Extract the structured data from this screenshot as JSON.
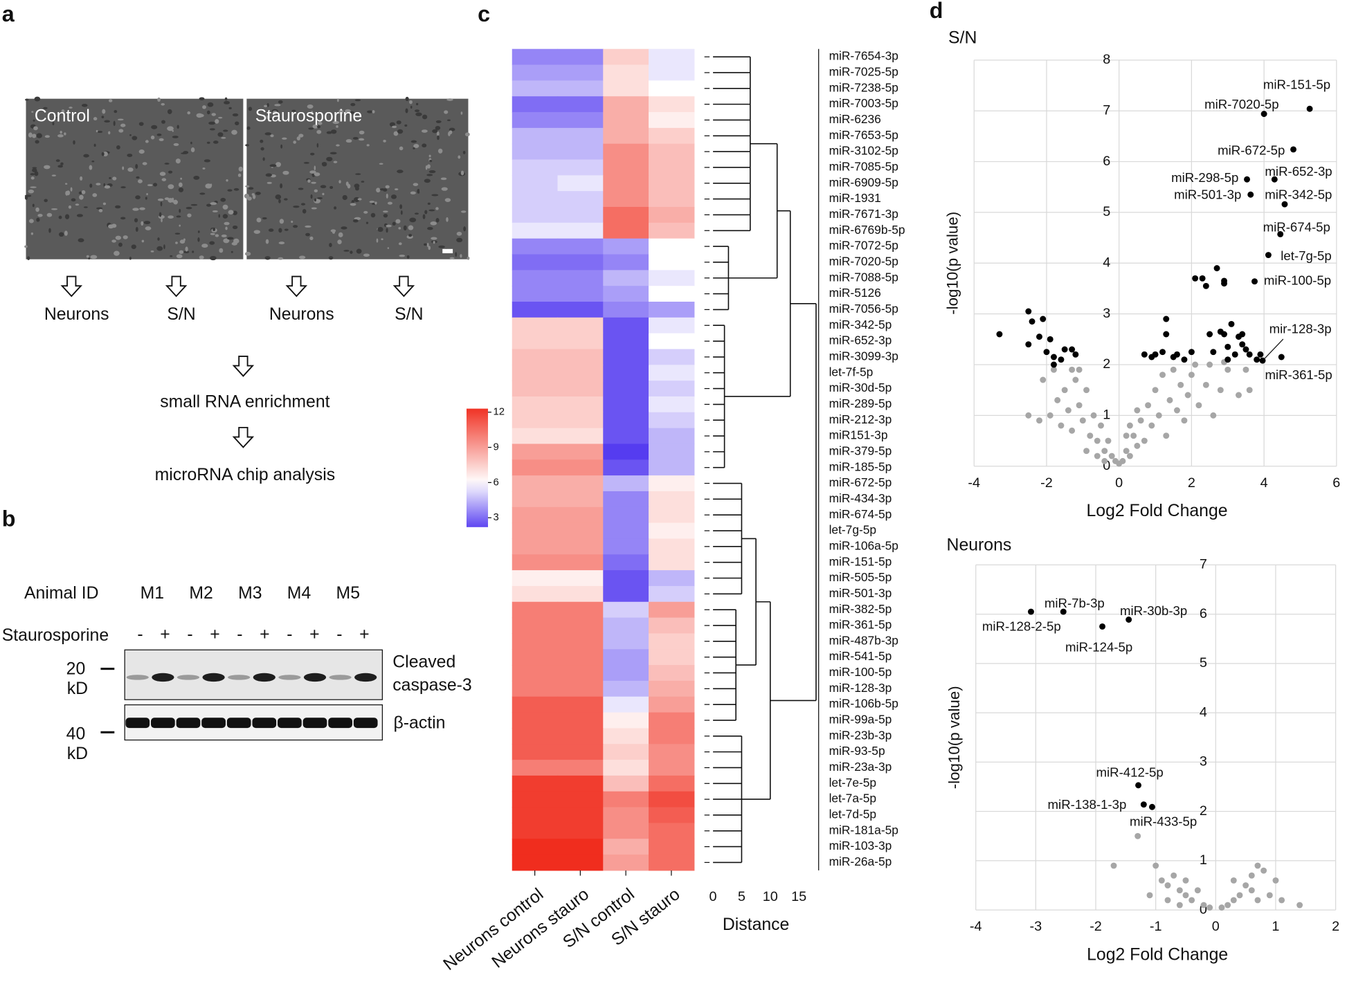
{
  "panel_labels": [
    "a",
    "b",
    "c",
    "d"
  ],
  "panel_a": {
    "images": [
      "Control",
      "Staurosporine"
    ],
    "fractions": [
      "Neurons",
      "S/N",
      "Neurons",
      "S/N"
    ],
    "steps": [
      "small RNA enrichment",
      "microRNA chip analysis"
    ]
  },
  "panel_b": {
    "row_label": "Animal ID",
    "animals": [
      "M1",
      "M2",
      "M3",
      "M4",
      "M5"
    ],
    "treatment": "Staurosporine",
    "signs": [
      "-",
      "+",
      "-",
      "+",
      "-",
      "+",
      "-",
      "+",
      "-",
      "+"
    ],
    "markers": [
      [
        "20",
        "kD"
      ],
      [
        "40",
        "kD"
      ]
    ],
    "blots": [
      [
        "Cleaved",
        "caspase-3"
      ],
      [
        "β-actin"
      ]
    ]
  },
  "chart_data": [
    {
      "type": "heatmap",
      "columns": [
        "Neurons control",
        "Neurons stauro",
        "S/N control",
        "S/N stauro"
      ],
      "rows": [
        "miR-7654-3p",
        "miR-7025-5p",
        "miR-7238-5p",
        "miR-7003-5p",
        "miR-6236",
        "miR-7653-5p",
        "miR-3102-5p",
        "miR-7085-5p",
        "miR-6909-5p",
        "miR-1931",
        "miR-7671-3p",
        "miR-6769b-5p",
        "miR-7072-5p",
        "miR-7020-5p",
        "miR-7088-5p",
        "miR-5126",
        "miR-7056-5p",
        "miR-342-5p",
        "miR-652-3p",
        "miR-3099-3p",
        "let-7f-5p",
        "miR-30d-5p",
        "miR-289-5p",
        "miR-212-3p",
        "miR151-3p",
        "miR-379-5p",
        "miR-185-5p",
        "miR-672-5p",
        "miR-434-3p",
        "miR-674-5p",
        "let-7g-5p",
        "miR-106a-5p",
        "miR-151-5p",
        "miR-505-5p",
        "miR-501-3p",
        "miR-382-5p",
        "miR-361-5p",
        "miR-487b-3p",
        "miR-541-5p",
        "miR-100-5p",
        "miR-128-3p",
        "miR-106b-5p",
        "miR-99a-5p",
        "miR-23b-3p",
        "miR-93-5p",
        "miR-23a-3p",
        "let-7e-5p",
        "let-7a-5p",
        "let-7d-5p",
        "miR-181a-5p",
        "miR-103-3p",
        "miR-26a-5p"
      ],
      "values": [
        [
          3.5,
          3.5,
          7.5,
          5.5
        ],
        [
          4,
          4,
          7,
          5.5
        ],
        [
          4.5,
          4.5,
          7,
          6
        ],
        [
          3,
          3,
          8.5,
          7
        ],
        [
          3.5,
          3.5,
          8.5,
          6.5
        ],
        [
          4.5,
          4.5,
          8.5,
          7.5
        ],
        [
          4.5,
          4.5,
          9.5,
          8
        ],
        [
          5,
          5,
          9.5,
          8
        ],
        [
          5,
          5.5,
          9.5,
          8
        ],
        [
          5,
          5,
          9.5,
          8
        ],
        [
          5,
          5,
          10.5,
          8.5
        ],
        [
          5.5,
          5.5,
          10.5,
          8
        ],
        [
          3.5,
          3.5,
          4,
          6
        ],
        [
          3,
          3,
          3.5,
          6
        ],
        [
          3.5,
          3.5,
          4.5,
          5.5
        ],
        [
          3.5,
          3.5,
          4,
          6
        ],
        [
          2.5,
          2.5,
          3.5,
          4
        ],
        [
          7.5,
          7.5,
          2.5,
          5.5
        ],
        [
          7.5,
          7.5,
          2.5,
          6
        ],
        [
          8,
          8,
          2.5,
          5
        ],
        [
          8,
          8,
          2.5,
          5.5
        ],
        [
          8,
          8,
          2.5,
          5
        ],
        [
          7.5,
          7.5,
          2.5,
          5.5
        ],
        [
          7.5,
          7.5,
          2.5,
          5
        ],
        [
          7,
          7,
          2.5,
          4.5
        ],
        [
          9,
          9,
          2,
          4.5
        ],
        [
          9.5,
          9.5,
          2.5,
          4.5
        ],
        [
          8.5,
          8.5,
          4.5,
          6.5
        ],
        [
          8.5,
          8.5,
          3.5,
          7
        ],
        [
          9,
          9,
          3.5,
          7
        ],
        [
          9,
          9,
          3.5,
          6.5
        ],
        [
          9,
          9,
          3.5,
          7
        ],
        [
          9.5,
          9.5,
          3,
          7
        ],
        [
          6.5,
          6.5,
          2.5,
          4.5
        ],
        [
          7,
          7,
          2.5,
          5
        ],
        [
          10,
          10,
          5,
          9
        ],
        [
          10,
          10,
          4.5,
          8
        ],
        [
          10,
          10,
          4.5,
          7.5
        ],
        [
          10,
          10,
          4,
          7.5
        ],
        [
          10,
          10,
          4,
          8
        ],
        [
          10,
          10,
          4.5,
          8.5
        ],
        [
          11,
          11,
          5.5,
          9
        ],
        [
          11,
          11,
          6.5,
          10
        ],
        [
          11,
          11,
          7,
          10
        ],
        [
          11,
          11,
          7.5,
          9.5
        ],
        [
          10,
          10,
          7,
          9.5
        ],
        [
          12,
          12,
          8,
          10.5
        ],
        [
          12,
          12,
          10,
          11.5
        ],
        [
          12,
          12,
          9.5,
          11
        ],
        [
          12,
          12,
          9.5,
          10.5
        ],
        [
          12.5,
          12.5,
          8.5,
          10.5
        ],
        [
          12.5,
          12.5,
          9,
          10.5
        ]
      ],
      "colorbar": {
        "lim": [
          2.2,
          12.3
        ],
        "ticks": [
          3,
          6,
          9,
          12
        ]
      },
      "distance_label": "Distance",
      "distance_lim": [
        0,
        18
      ],
      "distance_ticks": [
        0,
        5,
        10,
        15
      ],
      "dendrogram": {
        "height": 18,
        "children": [
          {
            "height": 13.5,
            "children": [
              {
                "height": 11.2,
                "children": [
                  {
                    "height": 6.5,
                    "rows": [
                      0,
                      11
                    ]
                  },
                  {
                    "height": 2.7,
                    "rows": [
                      12,
                      16
                    ]
                  }
                ]
              },
              {
                "height": 2,
                "rows": [
                  17,
                  26
                ]
              }
            ]
          },
          {
            "height": 10,
            "children": [
              {
                "height": 7.5,
                "children": [
                  {
                    "height": 5,
                    "rows": [
                      27,
                      34
                    ]
                  },
                  {
                    "height": 4,
                    "rows": [
                      35,
                      42
                    ]
                  }
                ]
              },
              {
                "height": 5,
                "rows": [
                  43,
                  51
                ]
              }
            ]
          }
        ]
      }
    },
    {
      "type": "scatter",
      "title": "S/N",
      "xlabel": "Log2 Fold Change",
      "ylabel": "-log10(p value)",
      "xlim": [
        -4,
        6
      ],
      "ylim": [
        0,
        8
      ],
      "xticks": [
        -4,
        -2,
        0,
        2,
        4,
        6
      ],
      "yticks": [
        0,
        1,
        2,
        3,
        4,
        5,
        6,
        7,
        8
      ],
      "grid": true,
      "series": [
        {
          "color": "#000000",
          "labels": [
            "miR-151-5p",
            "miR-7020-5p",
            "miR-672-5p",
            "miR-652-3p",
            "miR-298-5p",
            "miR-501-3p",
            "miR-342-5p",
            "miR-674-5p",
            "let-7g-5p",
            "miR-100-5p",
            "mir-128-3p",
            "miR-361-5p"
          ],
          "x": [
            5.26,
            4.0,
            4.81,
            4.29,
            3.53,
            3.63,
            4.57,
            4.45,
            4.12,
            3.74,
            3.96,
            4.48
          ],
          "values": [
            7.04,
            6.94,
            6.24,
            5.65,
            5.65,
            5.35,
            5.16,
            4.57,
            4.16,
            3.64,
            2.08,
            2.15
          ]
        },
        {
          "color": "#000000",
          "x": [
            -3.3,
            -2.5,
            -2.4,
            -2.5,
            -2.1,
            -2.2,
            -1.9,
            -1.8,
            -2.0,
            -1.6,
            -1.5,
            -1.3,
            -1.8,
            -1.2,
            1.3,
            1.3,
            1.2,
            0.7,
            0.9,
            1.0,
            1.5,
            1.6,
            1.8,
            2.0,
            2.1,
            2.3,
            2.4,
            2.7,
            2.9,
            2.9,
            2.5,
            2.6,
            2.8,
            2.9,
            3.0,
            3.2,
            3.4,
            3.3,
            3.1,
            3.5,
            3.6,
            3.8,
            3.0,
            3.4,
            3.9
          ],
          "values": [
            2.6,
            3.05,
            2.85,
            2.4,
            2.9,
            2.55,
            2.5,
            2.15,
            2.25,
            2.1,
            2.3,
            2.3,
            2.0,
            2.2,
            2.9,
            2.6,
            2.25,
            2.2,
            2.15,
            2.2,
            2.15,
            2.2,
            2.1,
            2.25,
            3.7,
            3.7,
            3.55,
            3.9,
            3.6,
            3.65,
            2.6,
            2.25,
            2.65,
            2.6,
            2.35,
            2.2,
            2.6,
            2.55,
            2.8,
            2.3,
            2.2,
            2.1,
            2.1,
            2.4,
            2.2
          ]
        },
        {
          "color": "#a6a6a6",
          "x": [
            -2.2,
            -1.9,
            -1.7,
            -1.6,
            -1.5,
            -1.4,
            -1.3,
            -1.2,
            -1.1,
            -1.0,
            -0.9,
            -0.8,
            -0.7,
            -0.6,
            -0.5,
            -0.4,
            -0.3,
            -0.2,
            -0.1,
            -2.5,
            -2.1,
            -1.8,
            -1.3,
            -1.1,
            -0.9,
            -0.6,
            -0.4,
            0.1,
            0.2,
            0.3,
            0.4,
            0.5,
            0.6,
            0.7,
            0.8,
            0.9,
            1.0,
            1.1,
            1.2,
            1.3,
            1.4,
            1.5,
            1.6,
            1.7,
            1.8,
            1.9,
            2.0,
            2.2,
            2.4,
            2.6,
            2.8,
            3.0,
            3.3,
            3.6,
            2.1,
            2.5,
            2.9,
            3.5,
            0.3,
            0.5,
            0.2,
            0.0
          ],
          "values": [
            0.9,
            1.0,
            1.3,
            0.8,
            1.5,
            1.1,
            0.7,
            1.7,
            1.2,
            0.9,
            1.5,
            0.6,
            1.0,
            0.5,
            0.8,
            0.3,
            0.5,
            0.2,
            0.1,
            1.0,
            1.7,
            1.9,
            1.9,
            1.9,
            0.3,
            0.2,
            0.1,
            0.1,
            0.3,
            0.2,
            0.6,
            0.4,
            0.9,
            0.5,
            1.2,
            0.8,
            1.5,
            1.0,
            1.8,
            0.6,
            1.3,
            1.9,
            1.1,
            1.6,
            0.9,
            1.4,
            1.8,
            1.2,
            1.6,
            1.0,
            1.5,
            1.9,
            1.4,
            1.5,
            2.0,
            2.0,
            2.05,
            1.9,
            0.8,
            1.1,
            0.6,
            0.05
          ]
        }
      ]
    },
    {
      "type": "scatter",
      "title": "Neurons",
      "xlabel": "Log2 Fold Change",
      "ylabel": "-log10(p value)",
      "xlim": [
        -4,
        2
      ],
      "ylim": [
        0,
        7
      ],
      "xticks": [
        -4,
        -3,
        -2,
        -1,
        0,
        1,
        2
      ],
      "yticks": [
        0,
        1,
        2,
        3,
        4,
        5,
        6,
        7
      ],
      "grid": true,
      "series": [
        {
          "color": "#000000",
          "labels": [
            "miR-7b-3p",
            "miR-128-2-5p",
            "miR-30b-3p",
            "miR-124-5p",
            "miR-412-5p",
            "miR-138-1-3p",
            "miR-433-5p"
          ],
          "x": [
            -2.54,
            -3.08,
            -1.45,
            -1.89,
            -1.29,
            -1.2,
            -1.06
          ],
          "values": [
            6.05,
            6.05,
            5.89,
            5.75,
            2.53,
            2.14,
            2.09
          ]
        },
        {
          "color": "#a6a6a6",
          "x": [
            -1.3,
            -1.7,
            -1.0,
            -0.9,
            -0.8,
            -0.7,
            -0.6,
            -0.5,
            -0.5,
            -0.4,
            -0.3,
            -0.2,
            -0.1,
            -1.1,
            -0.8,
            -0.6,
            0.1,
            0.2,
            0.3,
            0.4,
            0.5,
            0.6,
            0.7,
            0.8,
            0.9,
            1.0,
            1.1,
            0.6,
            0.3,
            1.4,
            0.7
          ],
          "values": [
            1.5,
            0.9,
            0.9,
            0.6,
            0.5,
            0.7,
            0.4,
            0.6,
            0.3,
            0.2,
            0.4,
            0.1,
            0.05,
            0.3,
            0.2,
            0.1,
            0.05,
            0.1,
            0.2,
            0.3,
            0.5,
            0.4,
            0.9,
            0.8,
            0.3,
            0.6,
            0.2,
            0.7,
            0.6,
            0.1,
            0.2
          ]
        }
      ]
    }
  ]
}
